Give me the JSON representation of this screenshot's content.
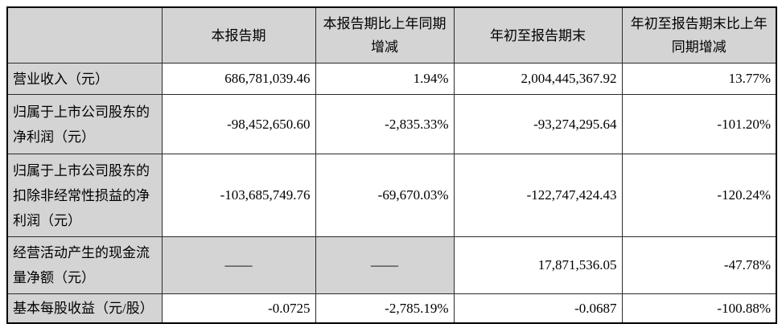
{
  "table": {
    "header": {
      "corner": "",
      "col_current_period": "本报告期",
      "col_current_period_yoy": "本报告期比上年同期增减",
      "col_ytd": "年初至报告期末",
      "col_ytd_yoy": "年初至报告期末比上年同期增减"
    },
    "rows": [
      {
        "label": "营业收入（元）",
        "values": [
          "686,781,039.46",
          "1.94%",
          "2,004,445,367.92",
          "13.77%"
        ]
      },
      {
        "label": "归属于上市公司股东的净利润（元）",
        "values": [
          "-98,452,650.60",
          "-2,835.33%",
          "-93,274,295.64",
          "-101.20%"
        ]
      },
      {
        "label": "归属于上市公司股东的扣除非经常性损益的净利润（元）",
        "values": [
          "-103,685,749.76",
          "-69,670.03%",
          "-122,747,424.43",
          "-120.24%"
        ]
      },
      {
        "label": "经营活动产生的现金流量净额（元）",
        "values": [
          "——",
          "——",
          "17,871,536.05",
          "-47.78%"
        ]
      },
      {
        "label": "基本每股收益（元/股）",
        "values": [
          "-0.0725",
          "-2,785.19%",
          "-0.0687",
          "-100.88%"
        ]
      }
    ],
    "colors": {
      "cell_shading": "#d4d4d4",
      "grid_line": "#2b2b2b",
      "text": "#000000",
      "background": "#ffffff"
    }
  }
}
